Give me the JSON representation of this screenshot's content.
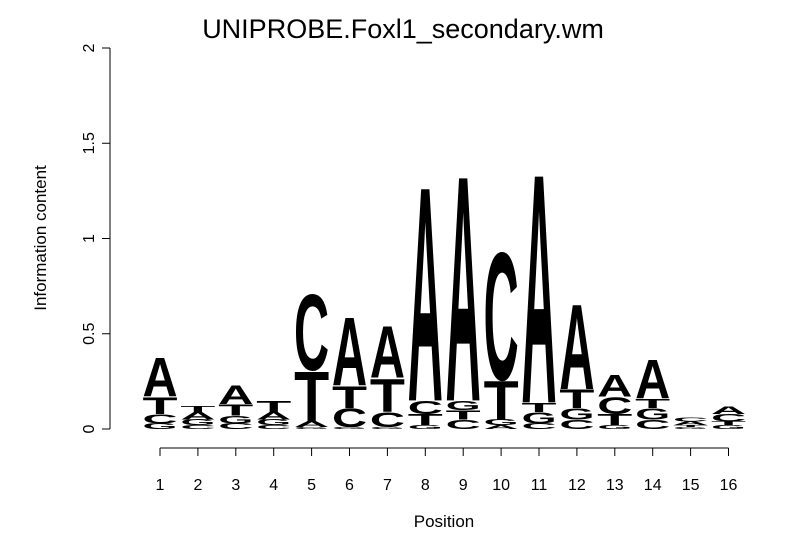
{
  "chart_data": {
    "type": "sequence-logo",
    "title": "UNIPROBE.Foxl1_secondary.wm",
    "xlabel": "Position",
    "ylabel": "Information content",
    "ylim": [
      0,
      2
    ],
    "yticks": [
      {
        "value": 0,
        "label": "0"
      },
      {
        "value": 0.5,
        "label": "0.5"
      },
      {
        "value": 1,
        "label": "1"
      },
      {
        "value": 1.5,
        "label": "1.5"
      },
      {
        "value": 2,
        "label": "2"
      }
    ],
    "grid": false,
    "legend": "none",
    "colors": {
      "A": "#00ff00",
      "C": "#0000ff",
      "G": "#ffa500",
      "T": "#ff0000"
    },
    "positions": [
      {
        "label": "1",
        "stack": [
          {
            "base": "G",
            "height": 0.03
          },
          {
            "base": "C",
            "height": 0.05
          },
          {
            "base": "T",
            "height": 0.09
          },
          {
            "base": "A",
            "height": 0.21
          }
        ]
      },
      {
        "label": "2",
        "stack": [
          {
            "base": "C",
            "height": 0.02
          },
          {
            "base": "G",
            "height": 0.03
          },
          {
            "base": "A",
            "height": 0.04
          },
          {
            "base": "T",
            "height": 0.03
          }
        ]
      },
      {
        "label": "3",
        "stack": [
          {
            "base": "C",
            "height": 0.03
          },
          {
            "base": "G",
            "height": 0.04
          },
          {
            "base": "T",
            "height": 0.06
          },
          {
            "base": "A",
            "height": 0.1
          }
        ]
      },
      {
        "label": "4",
        "stack": [
          {
            "base": "C",
            "height": 0.02
          },
          {
            "base": "G",
            "height": 0.03
          },
          {
            "base": "A",
            "height": 0.04
          },
          {
            "base": "T",
            "height": 0.06
          }
        ]
      },
      {
        "label": "5",
        "stack": [
          {
            "base": "G",
            "height": 0.01
          },
          {
            "base": "A",
            "height": 0.03
          },
          {
            "base": "T",
            "height": 0.27
          },
          {
            "base": "C",
            "height": 0.41
          }
        ]
      },
      {
        "label": "6",
        "stack": [
          {
            "base": "G",
            "height": 0.01
          },
          {
            "base": "C",
            "height": 0.1
          },
          {
            "base": "T",
            "height": 0.12
          },
          {
            "base": "A",
            "height": 0.37
          }
        ]
      },
      {
        "label": "7",
        "stack": [
          {
            "base": "G",
            "height": 0.01
          },
          {
            "base": "C",
            "height": 0.08
          },
          {
            "base": "T",
            "height": 0.18
          },
          {
            "base": "A",
            "height": 0.28
          }
        ]
      },
      {
        "label": "8",
        "stack": [
          {
            "base": "G",
            "height": 0.02
          },
          {
            "base": "T",
            "height": 0.06
          },
          {
            "base": "C",
            "height": 0.07
          },
          {
            "base": "A",
            "height": 1.16
          }
        ]
      },
      {
        "label": "9",
        "stack": [
          {
            "base": "C",
            "height": 0.05
          },
          {
            "base": "T",
            "height": 0.05
          },
          {
            "base": "G",
            "height": 0.05
          },
          {
            "base": "A",
            "height": 1.22
          }
        ]
      },
      {
        "label": "10",
        "stack": [
          {
            "base": "A",
            "height": 0.02
          },
          {
            "base": "G",
            "height": 0.03
          },
          {
            "base": "T",
            "height": 0.21
          },
          {
            "base": "C",
            "height": 0.69
          }
        ]
      },
      {
        "label": "11",
        "stack": [
          {
            "base": "C",
            "height": 0.03
          },
          {
            "base": "G",
            "height": 0.06
          },
          {
            "base": "T",
            "height": 0.05
          },
          {
            "base": "A",
            "height": 1.24
          }
        ]
      },
      {
        "label": "12",
        "stack": [
          {
            "base": "C",
            "height": 0.05
          },
          {
            "base": "G",
            "height": 0.06
          },
          {
            "base": "T",
            "height": 0.1
          },
          {
            "base": "A",
            "height": 0.46
          }
        ]
      },
      {
        "label": "13",
        "stack": [
          {
            "base": "G",
            "height": 0.02
          },
          {
            "base": "T",
            "height": 0.06
          },
          {
            "base": "C",
            "height": 0.09
          },
          {
            "base": "A",
            "height": 0.12
          }
        ]
      },
      {
        "label": "14",
        "stack": [
          {
            "base": "C",
            "height": 0.05
          },
          {
            "base": "G",
            "height": 0.06
          },
          {
            "base": "T",
            "height": 0.05
          },
          {
            "base": "A",
            "height": 0.21
          }
        ]
      },
      {
        "label": "15",
        "stack": [
          {
            "base": "G",
            "height": 0.01
          },
          {
            "base": "T",
            "height": 0.01
          },
          {
            "base": "A",
            "height": 0.02
          },
          {
            "base": "C",
            "height": 0.02
          }
        ]
      },
      {
        "label": "16",
        "stack": [
          {
            "base": "G",
            "height": 0.02
          },
          {
            "base": "T",
            "height": 0.02
          },
          {
            "base": "C",
            "height": 0.04
          },
          {
            "base": "A",
            "height": 0.04
          }
        ]
      }
    ]
  }
}
